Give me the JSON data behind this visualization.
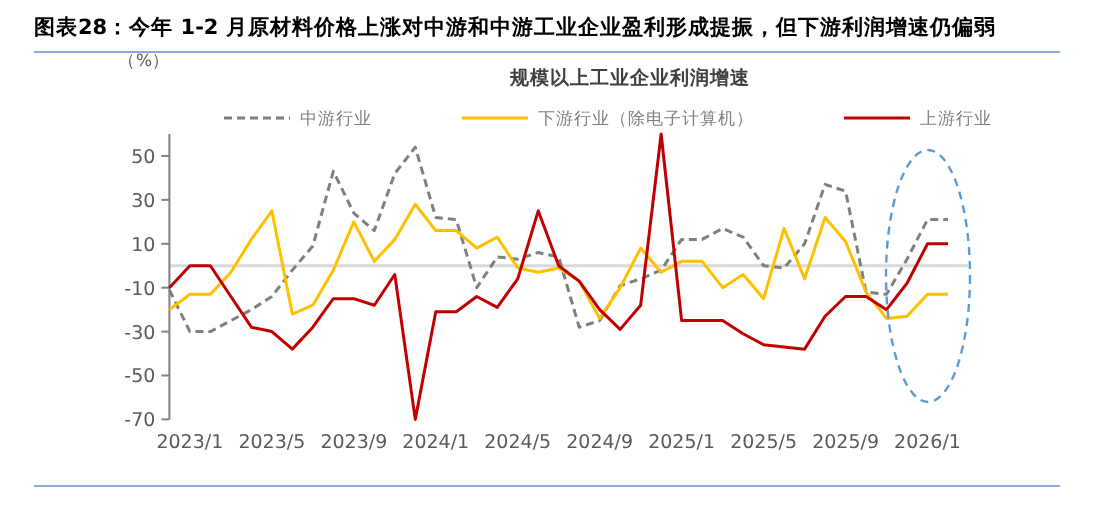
{
  "chart_data": {
    "type": "line",
    "title": "图表28：今年 1-2 月原材料价格上涨对中游和中游工业企业盈利形成提振，但下游利润增速仍偏弱",
    "subtitle": "规模以上工业企业利润增速",
    "ylabel": "（%）",
    "categories": [
      null,
      "2023/1",
      null,
      null,
      null,
      "2023/5",
      null,
      null,
      null,
      "2023/9",
      null,
      null,
      null,
      "2024/1",
      null,
      null,
      null,
      "2024/5",
      null,
      null,
      null,
      "2024/9",
      null,
      null,
      null,
      "2025/1",
      null,
      null,
      null,
      "2025/5",
      null,
      null,
      null,
      "2025/9",
      null,
      null,
      null,
      "2026/1",
      null
    ],
    "ylim": [
      -70,
      60
    ],
    "yticks": [
      -70,
      -50,
      -30,
      -10,
      10,
      30,
      50
    ],
    "legend": "top",
    "ref_lines": [
      {
        "axis": "y",
        "value": 0,
        "color": "#d9d9d9"
      }
    ],
    "series": [
      {
        "name": "中游行业",
        "color": "#7f7f7f",
        "line_style": "dashed",
        "values": [
          -11,
          -30,
          -30,
          -25,
          -20,
          -14,
          -2,
          9,
          43,
          24,
          16,
          42,
          54,
          22,
          21,
          -10,
          4,
          3,
          6,
          4,
          -28,
          -25,
          -9,
          -6,
          -2,
          12,
          12,
          17,
          13,
          0,
          -1,
          10,
          37,
          34,
          -12,
          -13,
          3,
          21,
          21
        ]
      },
      {
        "name": "下游行业（除电子计算机）",
        "color": "#ffc000",
        "line_style": "solid",
        "values": [
          -20,
          -13,
          -13,
          -3,
          12,
          25,
          -22,
          -18,
          -2,
          20,
          2,
          12,
          28,
          16,
          16,
          8,
          13,
          -1,
          -3,
          -1,
          -7,
          -24,
          -10,
          8,
          -3,
          2,
          2,
          -10,
          -4,
          -15,
          17,
          -6,
          22,
          11,
          -12,
          -24,
          -23,
          -13,
          -13
        ]
      },
      {
        "name": "上游行业",
        "color": "#c00000",
        "line_style": "solid",
        "values": [
          -10,
          0,
          0,
          -14,
          -28,
          -30,
          -38,
          -28,
          -15,
          -15,
          -18,
          -4,
          -70,
          -21,
          -21,
          -14,
          -19,
          -6,
          25,
          0,
          -7,
          -20,
          -29,
          -18,
          60,
          -25,
          -25,
          -25,
          -31,
          -36,
          -37,
          -38,
          -23,
          -14,
          -14,
          -20,
          -8,
          10,
          10
        ]
      }
    ]
  }
}
